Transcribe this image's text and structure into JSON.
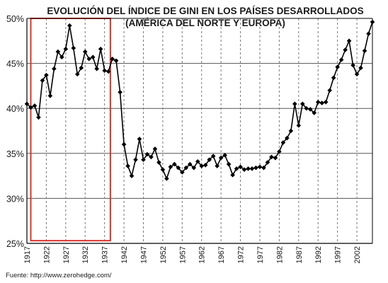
{
  "chart_data": {
    "type": "line",
    "title": "EVOLUCIÓN DEL ÍNDICE DE GINI EN LOS PAÍSES DESARROLLADOS",
    "subtitle": "(AMÉRICA DEL NORTE Y EUROPA)",
    "xlabel": "",
    "ylabel": "",
    "ylim": [
      25,
      50
    ],
    "xlim": [
      1917,
      2006
    ],
    "y_ticks": [
      25,
      30,
      35,
      40,
      45,
      50
    ],
    "y_tick_labels": [
      "25%",
      "30%",
      "35%",
      "40%",
      "45%",
      "50%"
    ],
    "x_tick_labels": [
      "1917",
      "1922",
      "1927",
      "1932",
      "1937",
      "1942",
      "1947",
      "1952",
      "1957",
      "1962",
      "1967",
      "1972",
      "1977",
      "1982",
      "1987",
      "1992",
      "1997",
      "2002"
    ],
    "x_ticks": [
      1917,
      1922,
      1927,
      1932,
      1937,
      1942,
      1947,
      1952,
      1957,
      1962,
      1967,
      1972,
      1977,
      1982,
      1987,
      1992,
      1997,
      2002
    ],
    "grid": "horizontal solid, vertical dashed",
    "line_color": "#000000",
    "marker": "diamond",
    "highlight": {
      "x_range": [
        1918,
        1938.5
      ],
      "y_range": [
        25.3,
        50
      ],
      "color": "#d9342b"
    },
    "series": [
      {
        "x": [
          1917,
          1918,
          1919,
          1920,
          1921,
          1922,
          1923,
          1924,
          1925,
          1926,
          1927,
          1928,
          1929,
          1930,
          1931,
          1932,
          1933,
          1934,
          1935,
          1936,
          1937,
          1938,
          1939,
          1940,
          1941,
          1942,
          1943,
          1944,
          1945,
          1946,
          1947,
          1948,
          1949,
          1950,
          1951,
          1952,
          1953,
          1954,
          1955,
          1956,
          1957,
          1958,
          1959,
          1960,
          1961,
          1962,
          1963,
          1964,
          1965,
          1966,
          1967,
          1968,
          1969,
          1970,
          1971,
          1972,
          1973,
          1974,
          1975,
          1976,
          1977,
          1978,
          1979,
          1980,
          1981,
          1982,
          1983,
          1984,
          1985,
          1986,
          1987,
          1988,
          1989,
          1990,
          1991,
          1992,
          1993,
          1994,
          1995,
          1996,
          1997,
          1998,
          1999,
          2000,
          2001,
          2002,
          2003,
          2004,
          2005,
          2006
        ],
        "values": [
          40.5,
          40.1,
          40.3,
          39.0,
          43.1,
          43.7,
          41.4,
          44.4,
          46.3,
          45.7,
          46.6,
          49.2,
          46.7,
          43.8,
          44.5,
          46.3,
          45.5,
          45.7,
          44.4,
          46.6,
          44.2,
          44.1,
          45.5,
          45.3,
          41.8,
          36.0,
          33.6,
          32.5,
          34.3,
          36.6,
          34.3,
          34.9,
          34.6,
          35.5,
          34.0,
          33.2,
          32.2,
          33.5,
          33.8,
          33.4,
          32.9,
          33.4,
          33.8,
          33.4,
          34.1,
          33.6,
          33.7,
          34.3,
          34.7,
          33.6,
          34.5,
          34.8,
          33.8,
          32.6,
          33.3,
          33.5,
          33.2,
          33.3,
          33.3,
          33.4,
          33.5,
          33.4,
          34.0,
          34.6,
          34.5,
          35.2,
          36.2,
          36.7,
          37.5,
          40.5,
          38.1,
          40.5,
          40.0,
          39.9,
          39.5,
          40.7,
          40.6,
          40.7,
          42.0,
          43.4,
          44.6,
          45.4,
          46.5,
          47.5,
          44.8,
          43.8,
          44.5,
          46.4,
          48.3,
          49.6
        ]
      }
    ]
  },
  "source_text": "Fuente: http://www.zerohedge.com/"
}
